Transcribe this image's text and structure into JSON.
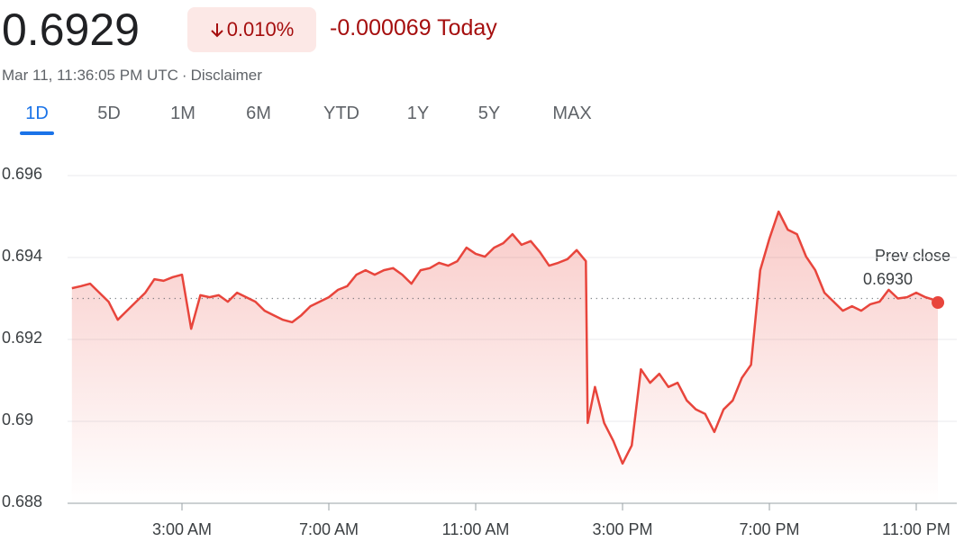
{
  "header": {
    "price": "0.6929",
    "change_percent": "0.010%",
    "change": "-0.000069 Today",
    "timestamp": "Mar 11, 11:36:05 PM UTC",
    "separator": "·",
    "disclaimer": "Disclaimer"
  },
  "tabs": [
    "1D",
    "5D",
    "1M",
    "6M",
    "YTD",
    "1Y",
    "5Y",
    "MAX"
  ],
  "chart_data": {
    "type": "line",
    "xlim": [
      0,
      24
    ],
    "ylim": [
      0.688,
      0.696
    ],
    "yticks": [
      0.696,
      0.694,
      0.692,
      0.69,
      0.688
    ],
    "xticks": [
      {
        "value": 3,
        "label": "3:00 AM"
      },
      {
        "value": 7,
        "label": "7:00 AM"
      },
      {
        "value": 11,
        "label": "11:00 AM"
      },
      {
        "value": 15,
        "label": "3:00 PM"
      },
      {
        "value": 19,
        "label": "7:00 PM"
      },
      {
        "value": 23,
        "label": "11:00 PM"
      }
    ],
    "grid": true,
    "prev_close": {
      "value": 0.693,
      "label": "0.6930"
    },
    "prev_close_title": "Prev close",
    "series": [
      {
        "color": "#e8453c",
        "x": [
          0,
          0.25,
          0.5,
          0.75,
          1,
          1.25,
          1.5,
          1.75,
          2,
          2.25,
          2.5,
          2.75,
          3,
          3.25,
          3.5,
          3.75,
          4,
          4.25,
          4.5,
          4.75,
          5,
          5.25,
          5.5,
          5.75,
          6,
          6.25,
          6.5,
          6.75,
          7,
          7.25,
          7.5,
          7.75,
          8,
          8.25,
          8.5,
          8.75,
          9,
          9.25,
          9.5,
          9.75,
          10,
          10.25,
          10.5,
          10.75,
          11,
          11.25,
          11.5,
          11.75,
          12,
          12.25,
          12.5,
          12.75,
          13,
          13.25,
          13.5,
          13.75,
          14,
          14.05,
          14.25,
          14.5,
          14.75,
          15,
          15.25,
          15.5,
          15.75,
          16,
          16.25,
          16.5,
          16.75,
          17,
          17.25,
          17.5,
          17.75,
          18,
          18.25,
          18.5,
          18.75,
          19,
          19.25,
          19.5,
          19.75,
          20,
          20.25,
          20.5,
          20.75,
          21,
          21.25,
          21.5,
          21.75,
          22,
          22.25,
          22.5,
          22.75,
          23,
          23.25,
          23.5,
          23.59
        ],
        "values": [
          0.69325,
          0.6933,
          0.69336,
          0.69314,
          0.69292,
          0.69248,
          0.6927,
          0.69292,
          0.69314,
          0.69347,
          0.69343,
          0.69352,
          0.69358,
          0.69226,
          0.69308,
          0.69303,
          0.69308,
          0.69292,
          0.69314,
          0.69303,
          0.69292,
          0.6927,
          0.69259,
          0.69248,
          0.69242,
          0.69259,
          0.69281,
          0.69292,
          0.69303,
          0.69321,
          0.6933,
          0.69358,
          0.69369,
          0.69358,
          0.69369,
          0.69374,
          0.69358,
          0.69336,
          0.69369,
          0.69374,
          0.69387,
          0.6938,
          0.69391,
          0.69424,
          0.69409,
          0.69402,
          0.69424,
          0.69435,
          0.69457,
          0.69431,
          0.6944,
          0.69413,
          0.6938,
          0.69387,
          0.69396,
          0.69418,
          0.69391,
          0.68996,
          0.69084,
          0.68996,
          0.68952,
          0.68897,
          0.68941,
          0.69127,
          0.69094,
          0.69116,
          0.69084,
          0.69094,
          0.69051,
          0.69029,
          0.69018,
          0.68974,
          0.69029,
          0.69051,
          0.69106,
          0.69138,
          0.69369,
          0.69446,
          0.69512,
          0.69468,
          0.69457,
          0.69402,
          0.69369,
          0.69314,
          0.69292,
          0.6927,
          0.69281,
          0.6927,
          0.69286,
          0.69292,
          0.69321,
          0.693,
          0.69303,
          0.69314,
          0.69303,
          0.69296,
          0.6929
        ]
      }
    ]
  }
}
